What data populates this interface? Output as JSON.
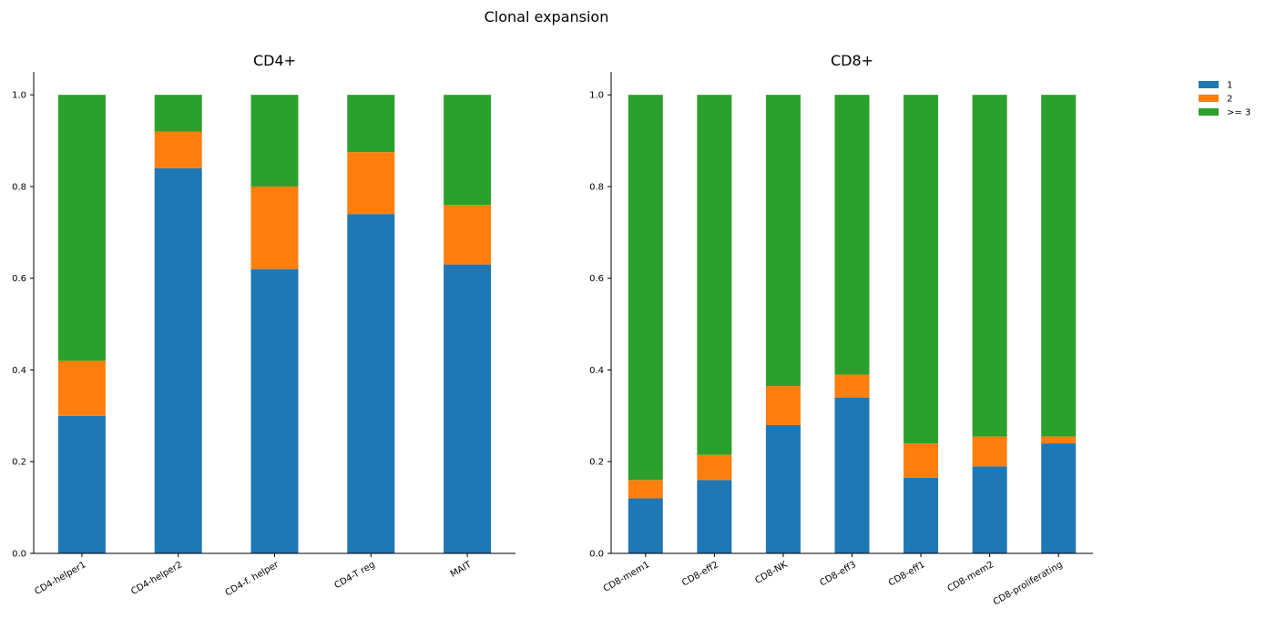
{
  "suptitle": "Clonal expansion",
  "legend": [
    {
      "label": "1",
      "color": "#1f77b4"
    },
    {
      "label": "2",
      "color": "#ff7f0e"
    },
    {
      "label": ">= 3",
      "color": "#2ca02c"
    }
  ],
  "chart_data": [
    {
      "type": "bar",
      "stacked": true,
      "title": "CD4+",
      "xlabel": "",
      "ylabel": "",
      "ylim": [
        0,
        1.05
      ],
      "yticks": [
        0.0,
        0.2,
        0.4,
        0.6,
        0.8,
        1.0
      ],
      "ytick_labels": [
        "0.0",
        "0.2",
        "0.4",
        "0.6",
        "0.8",
        "1.0"
      ],
      "categories": [
        "CD4-helper1",
        "CD4-helper2",
        "CD4-f. helper",
        "CD4-T reg",
        "MAIT"
      ],
      "series": [
        {
          "name": "1",
          "color": "#1f77b4",
          "values": [
            0.3,
            0.84,
            0.62,
            0.74,
            0.63
          ]
        },
        {
          "name": "2",
          "color": "#ff7f0e",
          "values": [
            0.12,
            0.08,
            0.18,
            0.135,
            0.13
          ]
        },
        {
          "name": ">= 3",
          "color": "#2ca02c",
          "values": [
            0.58,
            0.08,
            0.2,
            0.125,
            0.24
          ]
        }
      ]
    },
    {
      "type": "bar",
      "stacked": true,
      "title": "CD8+",
      "xlabel": "",
      "ylabel": "",
      "ylim": [
        0,
        1.05
      ],
      "yticks": [
        0.0,
        0.2,
        0.4,
        0.6,
        0.8,
        1.0
      ],
      "ytick_labels": [
        "0.0",
        "0.2",
        "0.4",
        "0.6",
        "0.8",
        "1.0"
      ],
      "categories": [
        "CD8-mem1",
        "CD8-eff2",
        "CD8-NK",
        "CD8-eff3",
        "CD8-eff1",
        "CD8-mem2",
        "CD8-proliferating"
      ],
      "series": [
        {
          "name": "1",
          "color": "#1f77b4",
          "values": [
            0.12,
            0.16,
            0.28,
            0.34,
            0.165,
            0.19,
            0.24
          ]
        },
        {
          "name": "2",
          "color": "#ff7f0e",
          "values": [
            0.04,
            0.055,
            0.085,
            0.05,
            0.075,
            0.065,
            0.015
          ]
        },
        {
          "name": ">= 3",
          "color": "#2ca02c",
          "values": [
            0.84,
            0.785,
            0.635,
            0.61,
            0.76,
            0.745,
            0.745
          ]
        }
      ]
    }
  ]
}
